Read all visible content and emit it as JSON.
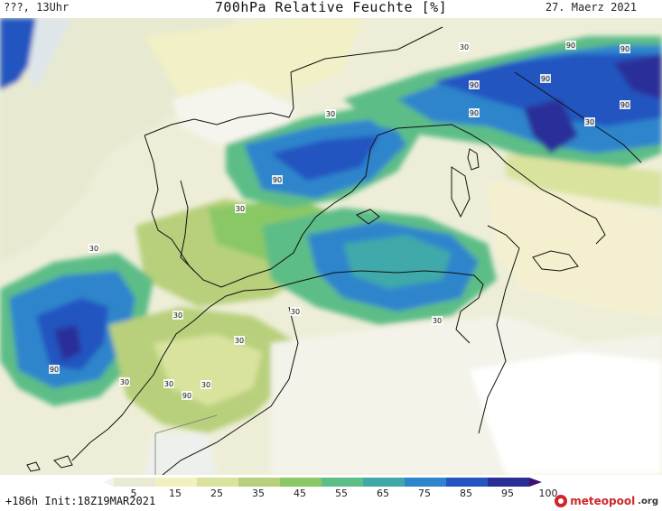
{
  "header": {
    "left": "???, 13Uhr",
    "title": "700hPa Relative Feuchte [%]",
    "right": "27. Maerz 2021"
  },
  "map": {
    "contour_labels": [
      "90",
      "90",
      "30",
      "30",
      "30",
      "90",
      "90",
      "90",
      "90",
      "90",
      "90",
      "30",
      "30",
      "30",
      "30",
      "30",
      "30",
      "30",
      "30",
      "90",
      "30"
    ]
  },
  "colorbar": {
    "ticks": [
      "5",
      "15",
      "25",
      "35",
      "45",
      "55",
      "65",
      "75",
      "85",
      "95",
      "100"
    ],
    "colors": [
      "#f2f2f2",
      "#e8ead4",
      "#f3f0bf",
      "#d9e39e",
      "#b8d07c",
      "#8ac865",
      "#5dbd86",
      "#3fa9a9",
      "#2f85cc",
      "#2455c0",
      "#2a2f98",
      "#3b1173"
    ]
  },
  "footer": {
    "run": "+186h Init:18Z19MAR2021",
    "brand": "meteopool",
    "brand_tld": ".org"
  }
}
